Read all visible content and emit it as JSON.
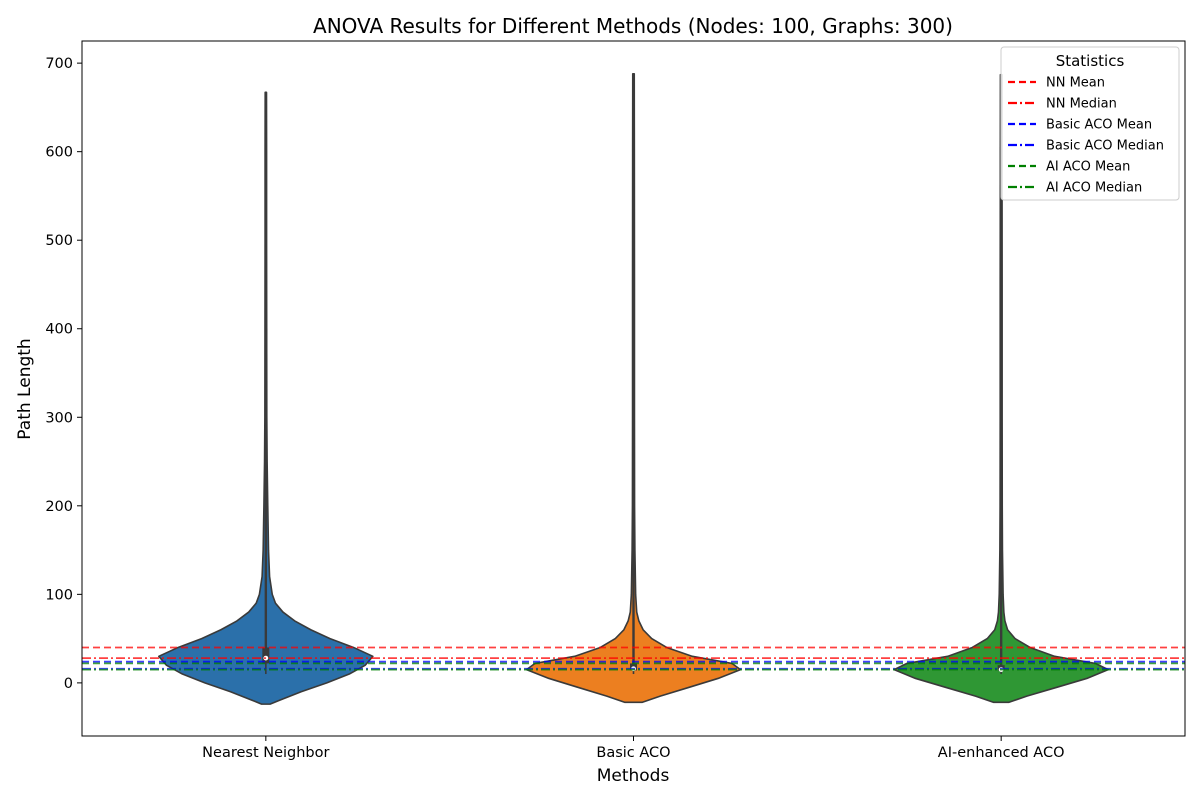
{
  "chart_data": {
    "type": "violin",
    "title": "ANOVA Results for Different Methods (Nodes: 100, Graphs: 300)",
    "xlabel": "Methods",
    "ylabel": "Path Length",
    "categories": [
      "Nearest Neighbor",
      "Basic ACO",
      "AI-enhanced ACO"
    ],
    "yticks": [
      0,
      100,
      200,
      300,
      400,
      500,
      600,
      700
    ],
    "ylim": [
      -60,
      725
    ],
    "colors": [
      "#2b70aa",
      "#ec7f20",
      "#2f9734"
    ],
    "violins": [
      {
        "name": "Nearest Neighbor",
        "min": -24,
        "max": 667,
        "q1": 22,
        "median": 28,
        "q3": 40,
        "whisker_low": 10,
        "whisker_high": 66,
        "profile": [
          [
            -24,
            0.04
          ],
          [
            -20,
            0.12
          ],
          [
            -10,
            0.33
          ],
          [
            0,
            0.57
          ],
          [
            10,
            0.78
          ],
          [
            20,
            0.93
          ],
          [
            30,
            1.0
          ],
          [
            40,
            0.82
          ],
          [
            50,
            0.6
          ],
          [
            60,
            0.42
          ],
          [
            70,
            0.27
          ],
          [
            80,
            0.16
          ],
          [
            90,
            0.09
          ],
          [
            100,
            0.06
          ],
          [
            120,
            0.035
          ],
          [
            150,
            0.025
          ],
          [
            200,
            0.018
          ],
          [
            250,
            0.012
          ],
          [
            300,
            0.009
          ],
          [
            400,
            0.008
          ],
          [
            500,
            0.007
          ],
          [
            600,
            0.007
          ],
          [
            667,
            0.006
          ]
        ]
      },
      {
        "name": "Basic ACO",
        "min": -22,
        "max": 688,
        "q1": 14,
        "median": 16,
        "q3": 22,
        "whisker_low": 10,
        "whisker_high": 30,
        "profile": [
          [
            -22,
            0.08
          ],
          [
            -15,
            0.25
          ],
          [
            -5,
            0.52
          ],
          [
            5,
            0.79
          ],
          [
            15,
            1.0
          ],
          [
            22,
            0.92
          ],
          [
            30,
            0.55
          ],
          [
            40,
            0.31
          ],
          [
            50,
            0.17
          ],
          [
            60,
            0.09
          ],
          [
            70,
            0.05
          ],
          [
            80,
            0.03
          ],
          [
            100,
            0.02
          ],
          [
            150,
            0.013
          ],
          [
            200,
            0.01
          ],
          [
            300,
            0.009
          ],
          [
            450,
            0.009
          ],
          [
            600,
            0.008
          ],
          [
            688,
            0.007
          ]
        ]
      },
      {
        "name": "AI-enhanced ACO",
        "min": -22,
        "max": 687,
        "q1": 14,
        "median": 15,
        "q3": 20,
        "whisker_low": 10,
        "whisker_high": 28,
        "profile": [
          [
            -22,
            0.07
          ],
          [
            -15,
            0.24
          ],
          [
            -5,
            0.52
          ],
          [
            5,
            0.8
          ],
          [
            15,
            1.0
          ],
          [
            22,
            0.88
          ],
          [
            30,
            0.5
          ],
          [
            40,
            0.27
          ],
          [
            50,
            0.13
          ],
          [
            60,
            0.06
          ],
          [
            70,
            0.035
          ],
          [
            80,
            0.025
          ],
          [
            100,
            0.018
          ],
          [
            150,
            0.012
          ],
          [
            200,
            0.01
          ],
          [
            300,
            0.009
          ],
          [
            450,
            0.009
          ],
          [
            600,
            0.008
          ],
          [
            687,
            0.007
          ]
        ]
      }
    ],
    "reference_lines": [
      {
        "label": "NN Mean",
        "value": 40,
        "color": "#ff0000",
        "style": "dashed"
      },
      {
        "label": "NN Median",
        "value": 28,
        "color": "#ff0000",
        "style": "dashdot"
      },
      {
        "label": "Basic ACO Mean",
        "value": 24,
        "color": "#0000ff",
        "style": "dashed"
      },
      {
        "label": "Basic ACO Median",
        "value": 16,
        "color": "#0000ff",
        "style": "dashdot"
      },
      {
        "label": "AI ACO Mean",
        "value": 22,
        "color": "#008000",
        "style": "dashed"
      },
      {
        "label": "AI ACO Median",
        "value": 15,
        "color": "#008000",
        "style": "dashdot"
      }
    ],
    "legend": {
      "title": "Statistics",
      "position": "top-right"
    }
  }
}
